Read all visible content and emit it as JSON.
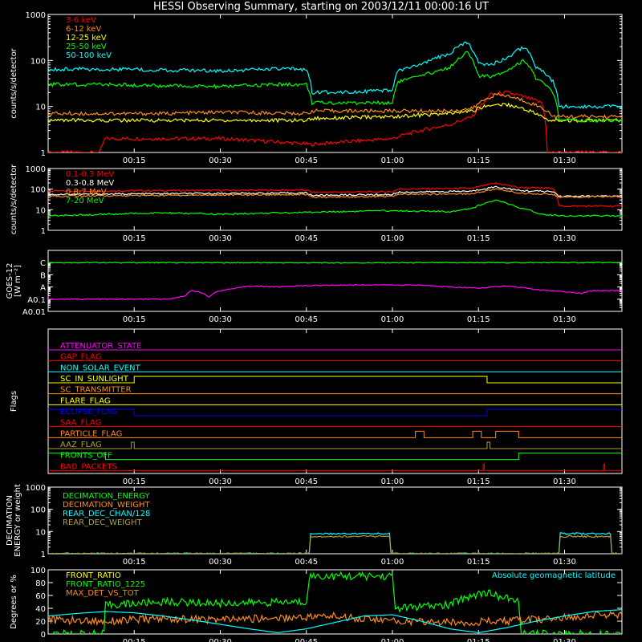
{
  "title": "HESSI Observing Summary, starting on 2003/12/11 00:00:16 UT",
  "time_ticks": [
    "00:15",
    "00:30",
    "00:45",
    "01:00",
    "01:15",
    "01:30"
  ],
  "colors": {
    "bg": "#000000",
    "axis": "#ffffff",
    "red": "#ff0000",
    "orange": "#ff8c1a",
    "yellow": "#ffff00",
    "green": "#00ff00",
    "cyan": "#00ffff",
    "magenta": "#ff00ff",
    "blue": "#0000ff",
    "olive": "#b0a040",
    "white": "#ffffff"
  },
  "chart_data": [
    {
      "id": "hxr",
      "type": "line",
      "ylabel": "counts/s/detector",
      "yscale": "log",
      "ylim": [
        1,
        1000
      ],
      "ytick_labels": [
        "1",
        "10",
        "100",
        "1000"
      ],
      "xlim_minutes": [
        0,
        100
      ],
      "series": [
        {
          "name": "3-6 keV",
          "color": "#ff0000",
          "x": [
            0,
            9,
            10,
            30,
            46,
            60,
            70,
            74,
            76,
            77,
            80,
            86,
            87,
            100
          ],
          "y": [
            1,
            1,
            2,
            2,
            1.5,
            2,
            4,
            6,
            12,
            18,
            20,
            12,
            1,
            1
          ]
        },
        {
          "name": "6-12 keV",
          "color": "#ff8c1a",
          "x": [
            0,
            10,
            20,
            30,
            45,
            46,
            60,
            70,
            74,
            76,
            78,
            80,
            84,
            87,
            88,
            100
          ],
          "y": [
            7,
            7,
            7,
            7.5,
            7,
            8,
            8,
            8,
            9,
            14,
            18,
            17,
            12,
            8,
            6,
            6
          ]
        },
        {
          "name": "12-25 keV",
          "color": "#ffff00",
          "x": [
            0,
            10,
            20,
            30,
            45,
            46,
            60,
            70,
            74,
            76,
            78,
            80,
            84,
            87,
            88,
            100
          ],
          "y": [
            5,
            5,
            5,
            5,
            5,
            5.5,
            6,
            7,
            8,
            10,
            11,
            11,
            8,
            5,
            5,
            5
          ]
        },
        {
          "name": "25-50 keV",
          "color": "#00ff00",
          "x": [
            0,
            10,
            20,
            30,
            40,
            45,
            46,
            60,
            61,
            65,
            70,
            73,
            75,
            77,
            80,
            83,
            85,
            88,
            89,
            100
          ],
          "y": [
            30,
            30,
            28,
            27,
            30,
            30,
            12,
            12,
            35,
            45,
            70,
            150,
            45,
            45,
            60,
            100,
            40,
            20,
            5,
            5
          ]
        },
        {
          "name": "50-100 keV",
          "color": "#00ffff",
          "x": [
            0,
            10,
            20,
            30,
            40,
            45,
            46,
            60,
            61,
            65,
            70,
            73,
            75,
            77,
            80,
            83,
            85,
            88,
            89,
            100
          ],
          "y": [
            65,
            65,
            62,
            60,
            65,
            65,
            20,
            22,
            60,
            80,
            140,
            250,
            90,
            80,
            110,
            200,
            70,
            35,
            10,
            10
          ]
        }
      ]
    },
    {
      "id": "gamma",
      "type": "line",
      "ylabel": "counts/s/detector",
      "yscale": "log",
      "ylim": [
        1,
        1000
      ],
      "ytick_labels": [
        "1",
        "10",
        "100",
        "1000"
      ],
      "xlim_minutes": [
        0,
        100
      ],
      "series": [
        {
          "name": "0.1-0.3 MeV",
          "color": "#ff0000",
          "x": [
            0,
            20,
            45,
            46,
            60,
            61,
            74,
            78,
            82,
            88,
            89,
            100
          ],
          "y": [
            80,
            85,
            90,
            70,
            75,
            100,
            110,
            190,
            120,
            110,
            15,
            15
          ]
        },
        {
          "name": "0.3-0.8 MeV",
          "color": "#ffffff",
          "x": [
            0,
            20,
            45,
            46,
            60,
            61,
            74,
            78,
            82,
            88,
            89,
            100
          ],
          "y": [
            55,
            60,
            65,
            50,
            55,
            70,
            80,
            130,
            85,
            75,
            45,
            45
          ]
        },
        {
          "name": "0.8-7 MeV",
          "color": "#ff8c1a",
          "x": [
            0,
            20,
            45,
            46,
            60,
            61,
            74,
            78,
            82,
            88,
            89,
            100
          ],
          "y": [
            45,
            50,
            55,
            40,
            45,
            55,
            60,
            100,
            65,
            55,
            40,
            45
          ]
        },
        {
          "name": "7-20 MeV",
          "color": "#00ff00",
          "x": [
            0,
            10,
            20,
            30,
            40,
            50,
            60,
            70,
            74,
            78,
            82,
            86,
            90,
            100
          ],
          "y": [
            5,
            6,
            7,
            6,
            7,
            8,
            9,
            8,
            12,
            28,
            12,
            6,
            5,
            5
          ]
        }
      ]
    },
    {
      "id": "goes",
      "type": "line",
      "ylabel": "GOES-12 [W m^-2]",
      "yscale": "log",
      "ylim": [
        0.01,
        1000
      ],
      "ytick_labels": [
        "A0.01",
        "A0.1",
        "A",
        "B",
        "C"
      ],
      "xlim_minutes": [
        0,
        100
      ],
      "series": [
        {
          "name": "",
          "color": "#00ff00",
          "x": [
            0,
            50,
            100
          ],
          "y": [
            100,
            95,
            100
          ]
        },
        {
          "name": "",
          "color": "#ff00ff",
          "x": [
            0,
            20,
            22,
            24,
            25,
            27,
            28,
            30,
            33,
            35,
            40,
            45,
            55,
            65,
            70,
            75,
            80,
            85,
            90,
            93,
            95,
            100
          ],
          "y": [
            0.1,
            0.1,
            0.12,
            0.2,
            0.5,
            0.3,
            0.15,
            0.5,
            0.8,
            1.2,
            1.0,
            1.3,
            1.5,
            1.4,
            1.0,
            0.8,
            1.2,
            0.6,
            0.4,
            0.3,
            0.5,
            0.5
          ]
        }
      ]
    },
    {
      "id": "flags",
      "type": "line",
      "ylabel": "Flags",
      "xlim_minutes": [
        0,
        100
      ],
      "flags": [
        {
          "name": "ATTENUATOR_STATE",
          "color": "#ff00ff",
          "levels": [
            [
              0,
              0
            ]
          ]
        },
        {
          "name": "GAP_FLAG",
          "color": "#ff0000",
          "levels": [
            [
              0,
              0
            ]
          ]
        },
        {
          "name": "NON_SOLAR_EVENT",
          "color": "#00ffff",
          "levels": [
            [
              0,
              0
            ]
          ]
        },
        {
          "name": "SC_IN_SUNLIGHT",
          "color": "#ffff00",
          "levels": [
            [
              0,
              0
            ],
            [
              15,
              1
            ],
            [
              76.5,
              0
            ]
          ]
        },
        {
          "name": "SC_TRANSMITTER",
          "color": "#ff8c1a",
          "levels": [
            [
              0,
              0
            ]
          ]
        },
        {
          "name": "FLARE_FLAG",
          "color": "#ffff00",
          "levels": [
            [
              0,
              0
            ]
          ]
        },
        {
          "name": "ECLIPSE_FLAG",
          "color": "#0000ff",
          "levels": [
            [
              0,
              1
            ],
            [
              15,
              0
            ],
            [
              76.5,
              1
            ]
          ]
        },
        {
          "name": "SAA_FLAG",
          "color": "#ff0000",
          "levels": [
            [
              0,
              0
            ]
          ]
        },
        {
          "name": "PARTICLE_FLAG",
          "color": "#ff8c1a",
          "levels": [
            [
              0,
              0
            ],
            [
              64,
              1
            ],
            [
              65.5,
              0
            ],
            [
              74,
              1
            ],
            [
              75.5,
              0
            ],
            [
              78,
              1
            ],
            [
              82,
              0
            ]
          ]
        },
        {
          "name": "AAZ_FLAG",
          "color": "#b0a040",
          "levels": [
            [
              0,
              0
            ],
            [
              14.5,
              1
            ],
            [
              15,
              0
            ],
            [
              76.5,
              1
            ],
            [
              77,
              0
            ]
          ]
        },
        {
          "name": "FRONTS_OFF",
          "color": "#00ff00",
          "levels": [
            [
              0,
              1
            ],
            [
              10,
              0
            ],
            [
              82,
              1
            ]
          ]
        },
        {
          "name": "BAD_PACKETS",
          "color": "#ff0000",
          "levels": [
            [
              0,
              0
            ],
            [
              75.8,
              1
            ],
            [
              76,
              0
            ],
            [
              96.8,
              1
            ],
            [
              97,
              0
            ]
          ]
        }
      ]
    },
    {
      "id": "decimation",
      "type": "line",
      "ylabel": "DECIMATION ENERGY or weight",
      "yscale": "log",
      "ylim": [
        1,
        1000
      ],
      "ytick_labels": [
        "1",
        "10",
        "100",
        "1000"
      ],
      "xlim_minutes": [
        0,
        100
      ],
      "series": [
        {
          "name": "DECIMATION_ENERGY",
          "color": "#00ff00",
          "x": [],
          "y": []
        },
        {
          "name": "DECIMATION_WEIGHT",
          "color": "#ff8c1a",
          "x": [],
          "y": []
        },
        {
          "name": "REAR_DEC_CHAN/128",
          "color": "#00ffff",
          "x": [
            0,
            45.5,
            45.6,
            59.5,
            59.6,
            89,
            89.1,
            98,
            98.1,
            100
          ],
          "y": [
            1,
            1,
            8,
            8,
            1,
            1,
            8,
            8,
            1,
            1
          ]
        },
        {
          "name": "REAR_DEC_WEIGHT",
          "color": "#b0a040",
          "x": [
            0,
            45.5,
            45.6,
            59.5,
            59.6,
            89,
            89.1,
            98,
            98.1,
            100
          ],
          "y": [
            1,
            1,
            6,
            6,
            1,
            1,
            6,
            6,
            1,
            1
          ]
        }
      ]
    },
    {
      "id": "ratios",
      "type": "line",
      "ylabel": "Degrees or %",
      "ylim": [
        0,
        100
      ],
      "ytick_labels": [
        "0",
        "20",
        "40",
        "60",
        "80",
        "100"
      ],
      "xlim_minutes": [
        0,
        100
      ],
      "annotation": "Absolute geomagnetic latitude",
      "series": [
        {
          "name": "FRONT_RATIO",
          "color": "#ffff00",
          "x": [],
          "y": []
        },
        {
          "name": "FRONT_RATIO_1225",
          "color": "#00ff00",
          "x": [
            0,
            9.9,
            10,
            20,
            30,
            45,
            45.5,
            60,
            60.5,
            70,
            72,
            76,
            80,
            82,
            82.5,
            100
          ],
          "y": [
            0,
            0,
            45,
            50,
            48,
            50,
            90,
            90,
            40,
            45,
            55,
            65,
            55,
            50,
            0,
            0
          ]
        },
        {
          "name": "MAX_DET_VS_TOT",
          "color": "#ff8c1a",
          "x": [
            0,
            10,
            20,
            30,
            40,
            50,
            60,
            70,
            80,
            90,
            95,
            100
          ],
          "y": [
            22,
            20,
            24,
            22,
            25,
            28,
            20,
            18,
            20,
            25,
            30,
            28
          ]
        },
        {
          "name": "Absolute geomagnetic latitude",
          "color": "#00ffff",
          "x": [
            0,
            5,
            10,
            15,
            20,
            25,
            30,
            35,
            40,
            45,
            50,
            55,
            60,
            65,
            70,
            75,
            80,
            85,
            90,
            95,
            100
          ],
          "y": [
            28,
            32,
            35,
            33,
            28,
            22,
            15,
            8,
            2,
            8,
            18,
            28,
            30,
            20,
            8,
            2,
            10,
            20,
            28,
            35,
            38
          ]
        }
      ]
    }
  ]
}
